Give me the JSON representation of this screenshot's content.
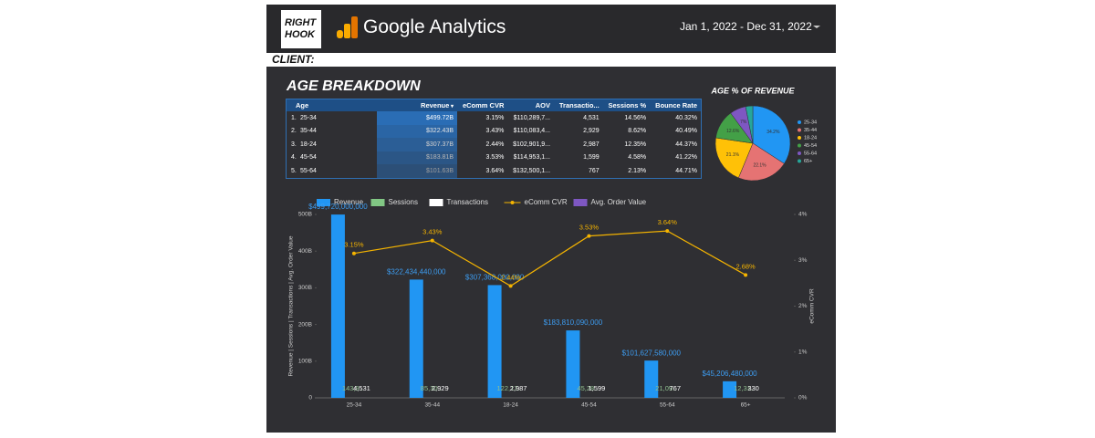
{
  "header": {
    "logo": [
      "RIGHT",
      "HOOK"
    ],
    "app": "Google Analytics",
    "date_range": "Jan 1, 2022 - Dec 31, 2022"
  },
  "client_label": "CLIENT:",
  "section_title": "AGE BREAKDOWN",
  "table": {
    "columns": [
      "Age",
      "Revenue",
      "eComm CVR",
      "AOV",
      "Transactio...",
      "Sessions %",
      "Bounce Rate"
    ],
    "rows": [
      [
        "1.",
        "25-34",
        "$499.72B",
        "3.15%",
        "$110,289,7...",
        "4,531",
        "14.56%",
        "40.32%"
      ],
      [
        "2.",
        "35-44",
        "$322.43B",
        "3.43%",
        "$110,083,4...",
        "2,929",
        "8.62%",
        "40.49%"
      ],
      [
        "3.",
        "18-24",
        "$307.37B",
        "2.44%",
        "$102,901,9...",
        "2,987",
        "12.35%",
        "44.37%"
      ],
      [
        "4.",
        "45-54",
        "$183.81B",
        "3.53%",
        "$114,953,1...",
        "1,599",
        "4.58%",
        "41.22%"
      ],
      [
        "5.",
        "55-64",
        "$101.63B",
        "3.64%",
        "$132,500,1...",
        "767",
        "2.13%",
        "44.71%"
      ]
    ]
  },
  "chart_data": [
    {
      "type": "pie",
      "title": "AGE % OF REVENUE",
      "categories": [
        "25-34",
        "35-44",
        "18-24",
        "45-54",
        "55-64",
        "65+"
      ],
      "values": [
        34.2,
        22.1,
        21.1,
        12.6,
        7,
        3.1
      ],
      "value_labels": [
        "34.2%",
        "22.1%",
        "21.1%",
        "12.6%",
        "7%",
        null
      ],
      "colors": [
        "#2196f3",
        "#e57373",
        "#ffc107",
        "#43a047",
        "#7e57c2",
        "#26a69a"
      ],
      "legend": "right"
    },
    {
      "type": "combo",
      "categories": [
        "25-34",
        "35-44",
        "18-24",
        "45-54",
        "55-64",
        "65+"
      ],
      "y_label": "Revenue | Sessions | Transactions | Avg. Order Value",
      "y2_label": "eComm CVR",
      "ylim": [
        0,
        500000000000
      ],
      "yticks": [
        0,
        {
          "value": 100000000000,
          "label": "100B"
        },
        {
          "value": 200000000000,
          "label": "200B"
        },
        {
          "value": 300000000000,
          "label": "300B"
        },
        {
          "value": 400000000000,
          "label": "400B"
        },
        {
          "value": 500000000000,
          "label": "500B"
        }
      ],
      "y2lim": [
        0,
        4
      ],
      "y2ticks": [
        {
          "value": 0,
          "label": "0%"
        },
        {
          "value": 1,
          "label": "1%"
        },
        {
          "value": 2,
          "label": "2%"
        },
        {
          "value": 3,
          "label": "3%"
        },
        {
          "value": 4,
          "label": "4%"
        }
      ],
      "legend": "top",
      "series": [
        {
          "name": "Revenue",
          "type": "bar",
          "color": "#2196f3",
          "values": [
            499720000000,
            322434440000,
            307368000000,
            183810090000,
            101627580000,
            45206480000
          ],
          "value_labels": [
            "$499,720,000,000",
            "$322,434,440,000",
            "$307,368,000,000",
            "$183,810,090,000",
            "$101,627,580,000",
            "$45,206,480,000"
          ]
        },
        {
          "name": "Sessions",
          "type": "bar",
          "color": "#81c784",
          "values": [
            143900,
            85300,
            122170,
            45280,
            21090,
            12310
          ],
          "value_labels": [
            "143,9..",
            "85,30..",
            "122,17..",
            "45,28..",
            "21,09..",
            "12,31.."
          ]
        },
        {
          "name": "Transactions",
          "type": "bar",
          "color": "#ffffff",
          "values": [
            4531,
            2929,
            2987,
            1599,
            767,
            330
          ],
          "value_labels": [
            "4,531",
            "2,929",
            "2,987",
            "1,599",
            "767",
            "330"
          ]
        },
        {
          "name": "eComm CVR",
          "type": "line",
          "axis": "y2",
          "color": "#f5b400",
          "values": [
            3.15,
            3.43,
            2.44,
            3.53,
            3.64,
            2.68
          ],
          "value_labels": [
            "3.15%",
            "3.43%",
            "2.44%",
            "3.53%",
            "3.64%",
            "2.68%"
          ]
        },
        {
          "name": "Avg. Order Value",
          "type": "bar",
          "color": "#7e57c2",
          "values": [
            110289700,
            110083400,
            102901900,
            114953100,
            132500100,
            null
          ]
        }
      ]
    }
  ]
}
